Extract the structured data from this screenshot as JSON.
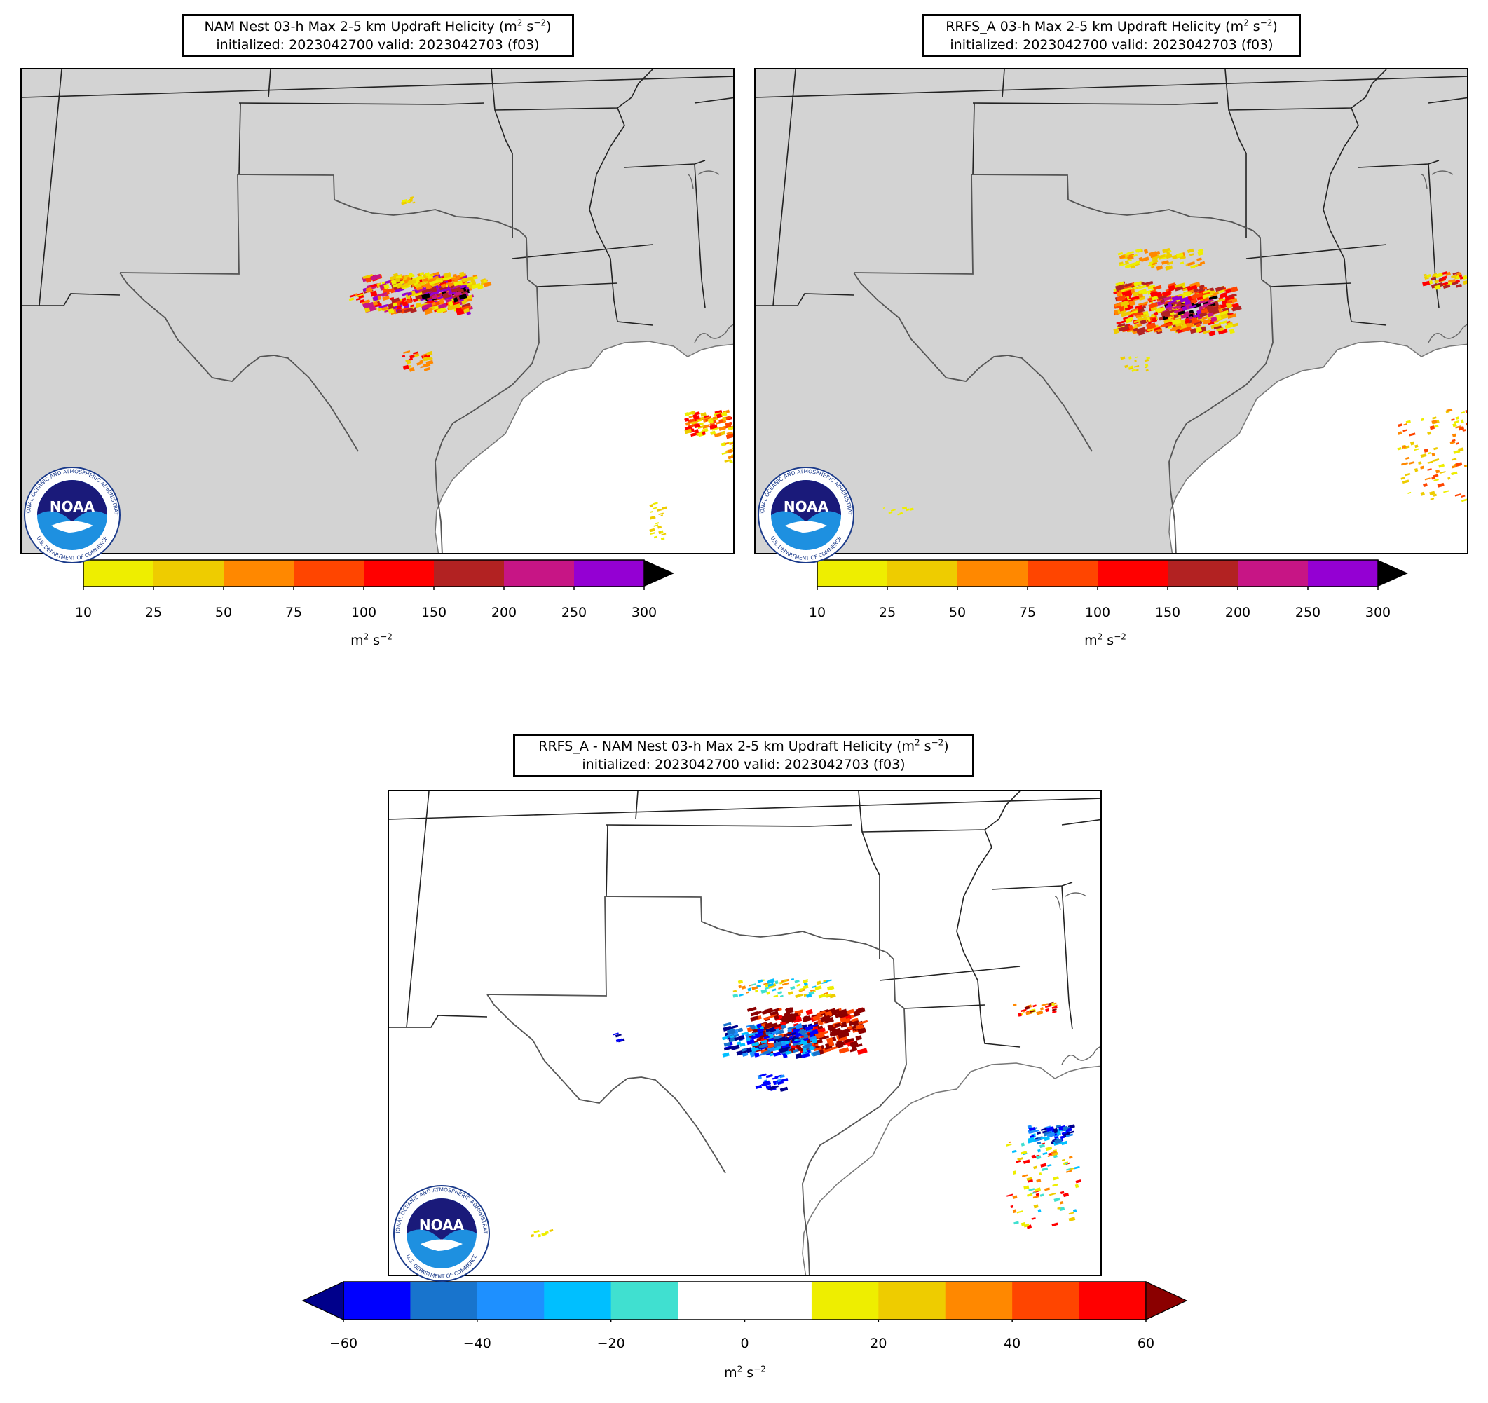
{
  "panels": [
    {
      "id": "nam",
      "title_line1": "NAM Nest 03-h Max 2-5 km Updraft Helicity (m",
      "title_sup": "2",
      "title_mid": " s",
      "title_sup2": "−2",
      "title_end": ")",
      "title_line2": "initialized: 2023042700 valid: 2023042703 (f03)",
      "land_fill": "gray"
    },
    {
      "id": "rrfs",
      "title_line1": "RRFS_A 03-h Max 2-5 km Updraft Helicity (m",
      "title_sup": "2",
      "title_mid": " s",
      "title_sup2": "−2",
      "title_end": ")",
      "title_line2": "initialized: 2023042700 valid: 2023042703 (f03)",
      "land_fill": "gray"
    },
    {
      "id": "diff",
      "title_line1": "RRFS_A - NAM Nest 03-h Max 2-5 km Updraft Helicity (m",
      "title_sup": "2",
      "title_mid": " s",
      "title_sup2": "−2",
      "title_end": ")",
      "title_line2": "initialized: 2023042700 valid: 2023042703 (f03)",
      "land_fill": "white"
    }
  ],
  "colorbar_uh": {
    "ticks": [
      "10",
      "25",
      "50",
      "75",
      "100",
      "150",
      "200",
      "250",
      "300"
    ],
    "colors": [
      "#eeee00",
      "#eecc00",
      "#ff8800",
      "#ff4500",
      "#ff0000",
      "#b22222",
      "#c71585",
      "#9400d3"
    ],
    "extend_color": "#000000",
    "unit": "m",
    "unit_sup": "2",
    "unit_mid": " s",
    "unit_sup2": "−2"
  },
  "colorbar_diff": {
    "ticks": [
      "−60",
      "−40",
      "−20",
      "0",
      "20",
      "40",
      "60"
    ],
    "colors": [
      "#0000ff",
      "#1874cd",
      "#1e90ff",
      "#00bfff",
      "#40e0d0",
      "#ffffff",
      "#ffffff",
      "#eeee00",
      "#eecc00",
      "#ff8800",
      "#ff4500",
      "#ff0000"
    ],
    "extend_low": "#00008b",
    "extend_high": "#8b0000",
    "unit": "m",
    "unit_sup": "2",
    "unit_mid": " s",
    "unit_sup2": "−2"
  },
  "logo": {
    "text": "NOAA",
    "ring_text_top": "NATIONAL OCEANIC AND ATMOSPHERIC ADMINISTRATION",
    "ring_text_bottom": "U.S. DEPARTMENT OF COMMERCE"
  }
}
